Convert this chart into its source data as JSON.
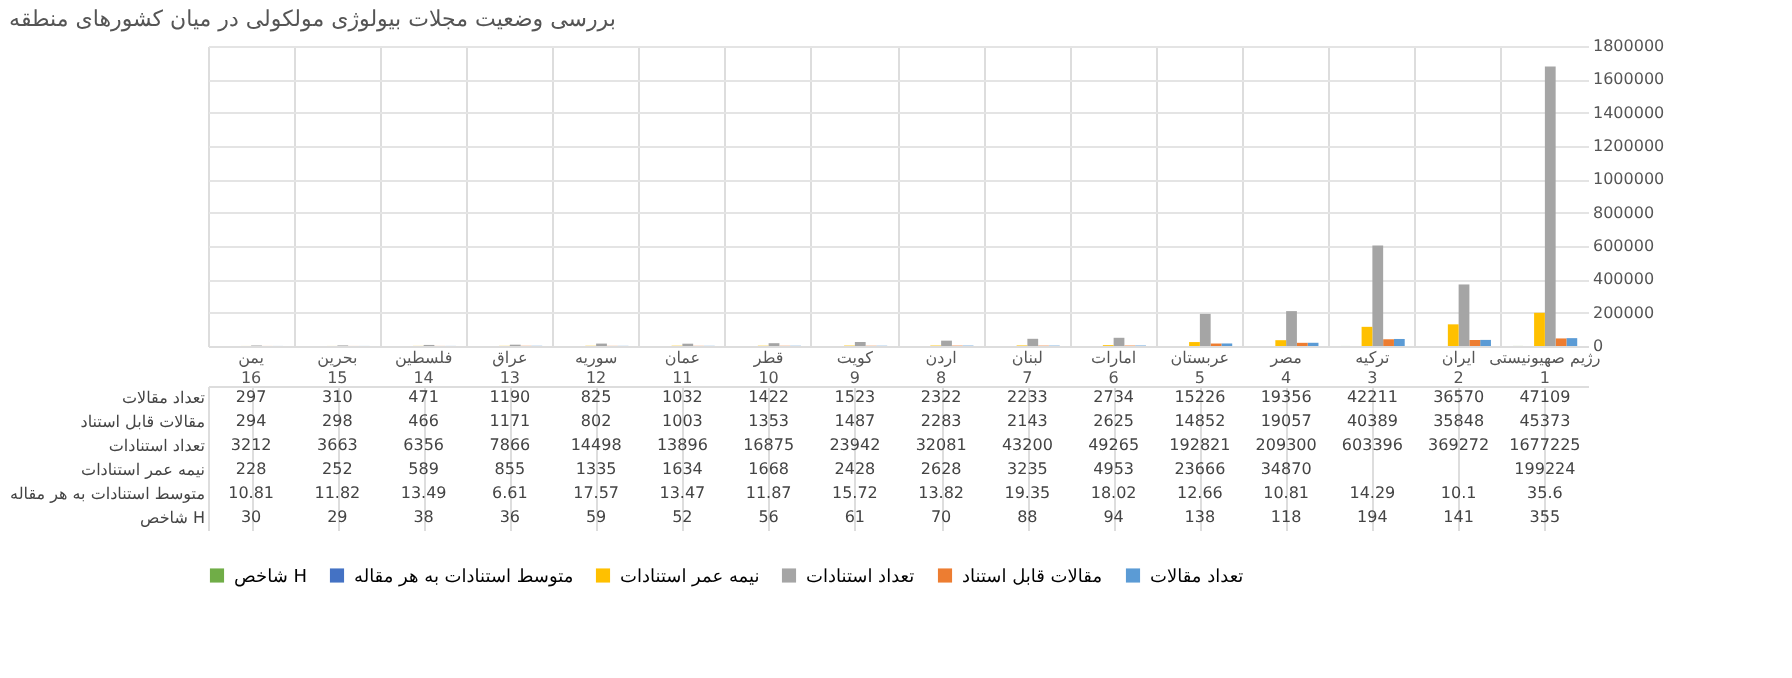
{
  "chart_data": {
    "type": "bar",
    "title": "بررسی وضعیت مجلات بیولوژی مولکولی در میان کشورهای منطقه",
    "categories": [
      "یمن\n16",
      "بحرین\n15",
      "فلسطین\n14",
      "عراق\n13",
      "سوریه\n12",
      "عمان\n11",
      "قطر\n10",
      "کویت\n9",
      "اردن\n8",
      "لبنان\n7",
      "امارات\n6",
      "عربستان\n5",
      "مصر\n4",
      "ترکیه\n3",
      "ایران\n2",
      "رژیم صهیونیستی\n1"
    ],
    "series": [
      {
        "name": "تعداد مقالات",
        "color": "#5b9bd5",
        "values": [
          297,
          310,
          471,
          1190,
          825,
          1032,
          1422,
          1523,
          2322,
          2233,
          2734,
          15226,
          19356,
          42211,
          36570,
          47109
        ]
      },
      {
        "name": "مقالات قابل استناد",
        "color": "#ed7d31",
        "values": [
          294,
          298,
          466,
          1171,
          802,
          1003,
          1353,
          1487,
          2283,
          2143,
          2625,
          14852,
          19057,
          40389,
          35848,
          45373
        ]
      },
      {
        "name": "تعداد استنادات",
        "color": "#a5a5a5",
        "values": [
          3212,
          3663,
          6356,
          7866,
          14498,
          13896,
          16875,
          23942,
          32081,
          43200,
          49265,
          192821,
          209300,
          603396,
          369272,
          1677225
        ]
      },
      {
        "name": "نیمه عمر استنادات",
        "color": "#ffc000",
        "values": [
          228,
          252,
          589,
          855,
          1335,
          1634,
          1668,
          2428,
          2628,
          3235,
          4953,
          23666,
          34870,
          115000,
          130000,
          199224
        ],
        "value_labels": [
          "228",
          "252",
          "589",
          "855",
          "1335",
          "1634",
          "1668",
          "2428",
          "2628",
          "3235",
          "4953",
          "23666",
          "34870",
          null,
          null,
          "199224"
        ]
      },
      {
        "name": "متوسط استنادات به هر مقاله",
        "color": "#4472c4",
        "values": [
          10.81,
          11.82,
          13.49,
          6.61,
          17.57,
          13.47,
          11.87,
          15.72,
          13.82,
          19.35,
          18.02,
          12.66,
          10.81,
          14.29,
          10.1,
          35.6
        ]
      },
      {
        "name": "شاخص H",
        "color": "#70ad47",
        "values": [
          30,
          29,
          38,
          36,
          59,
          52,
          56,
          61,
          70,
          88,
          94,
          138,
          118,
          194,
          141,
          355
        ]
      }
    ],
    "ylim": [
      0,
      1800000
    ],
    "yticks": [
      0,
      200000,
      400000,
      600000,
      800000,
      1000000,
      1200000,
      1400000,
      1600000,
      1800000
    ],
    "grid": "y",
    "legend": "bottom",
    "data_labels": true
  }
}
